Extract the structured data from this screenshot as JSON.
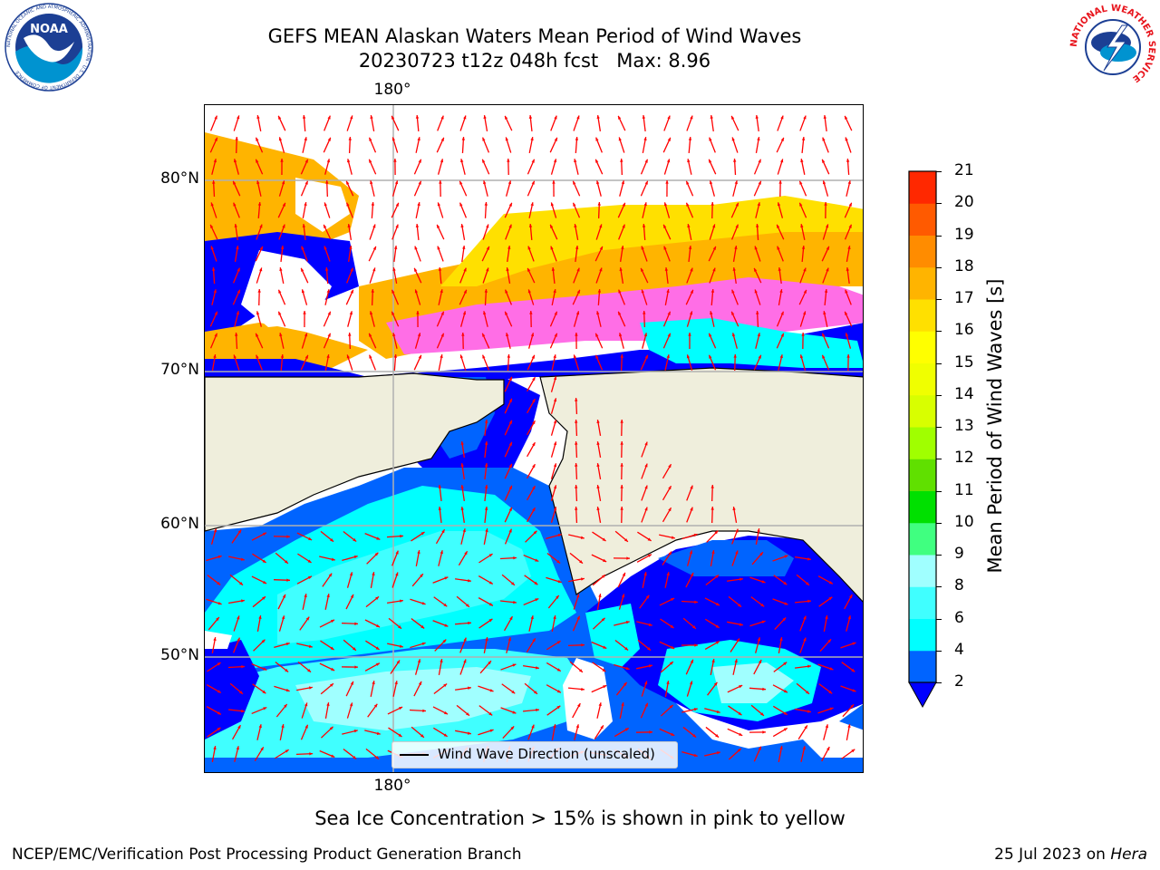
{
  "header": {
    "title": "GEFS MEAN Alaskan Waters Mean Period of Wind Waves",
    "subtitle": "20230723 t12z 048h fcst   Max: 8.96"
  },
  "logos": {
    "noara_text": "NOAA",
    "noaa_ring": "NATIONAL OCEANIC AND ATMOSPHERIC ADMINISTRATION · U.S. DEPARTMENT OF COMMERCE",
    "nws_ring": "NATIONAL WEATHER SERVICE"
  },
  "map": {
    "lon_label_top": "180°",
    "lon_label_bottom": "180°",
    "lat_labels": [
      "80°N",
      "70°N",
      "60°N",
      "50°N"
    ],
    "legend_label": "Wind Wave Direction (unscaled)",
    "colors": {
      "land": "#efeedc",
      "ice_pink": "#ff6ee6",
      "ice_orange": "#ffb400",
      "ice_yellow": "#ffe000",
      "arrow": "#ff0000"
    }
  },
  "colorbar": {
    "label": "Mean Period of Wind Waves [s]",
    "ticks": [
      "2",
      "4",
      "6",
      "8",
      "9",
      "10",
      "11",
      "12",
      "13",
      "14",
      "15",
      "16",
      "17",
      "18",
      "19",
      "20",
      "21"
    ],
    "colors": [
      "#0064ff",
      "#00ffff",
      "#40ffff",
      "#a0ffff",
      "#40ff80",
      "#00e000",
      "#60e000",
      "#a0ff00",
      "#d8ff00",
      "#f0ff00",
      "#ffff00",
      "#ffe000",
      "#ffb400",
      "#ff8c00",
      "#ff5a00",
      "#ff2800"
    ],
    "under_color": "#0000ff"
  },
  "notes": {
    "ice": "Sea Ice Concentration > 15% is shown in pink to yellow"
  },
  "footer": {
    "left": "NCEP/EMC/Verification Post Processing Product Generation Branch",
    "right_prefix": "25 Jul 2023 on ",
    "right_host": "Hera"
  }
}
